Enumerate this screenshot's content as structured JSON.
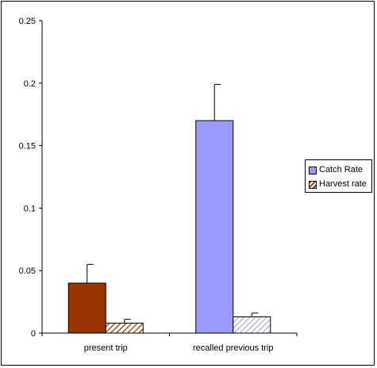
{
  "chart_data": {
    "type": "bar",
    "categories": [
      "present trip",
      "recalled previous trip"
    ],
    "series": [
      {
        "name": "Catch Rate",
        "values": [
          0.04,
          0.17
        ],
        "error": [
          0.015,
          0.029
        ],
        "colors": [
          "#993300",
          "#9999ff"
        ],
        "pattern": "solid"
      },
      {
        "name": "Harvest rate",
        "values": [
          0.008,
          0.013
        ],
        "error": [
          0.003,
          0.003
        ],
        "colors": [
          "#993300",
          "#9999ff"
        ],
        "pattern": "hatched"
      }
    ],
    "ylim": [
      0,
      0.25
    ],
    "yticks": [
      "0",
      "0.05",
      "0.1",
      "0.15",
      "0.2",
      "0.25"
    ],
    "ytick_values": [
      0,
      0.05,
      0.1,
      0.15,
      0.2,
      0.25
    ],
    "grid": false,
    "legend_position": "right",
    "legend_colors": [
      "#9999ff",
      "#993300"
    ]
  }
}
